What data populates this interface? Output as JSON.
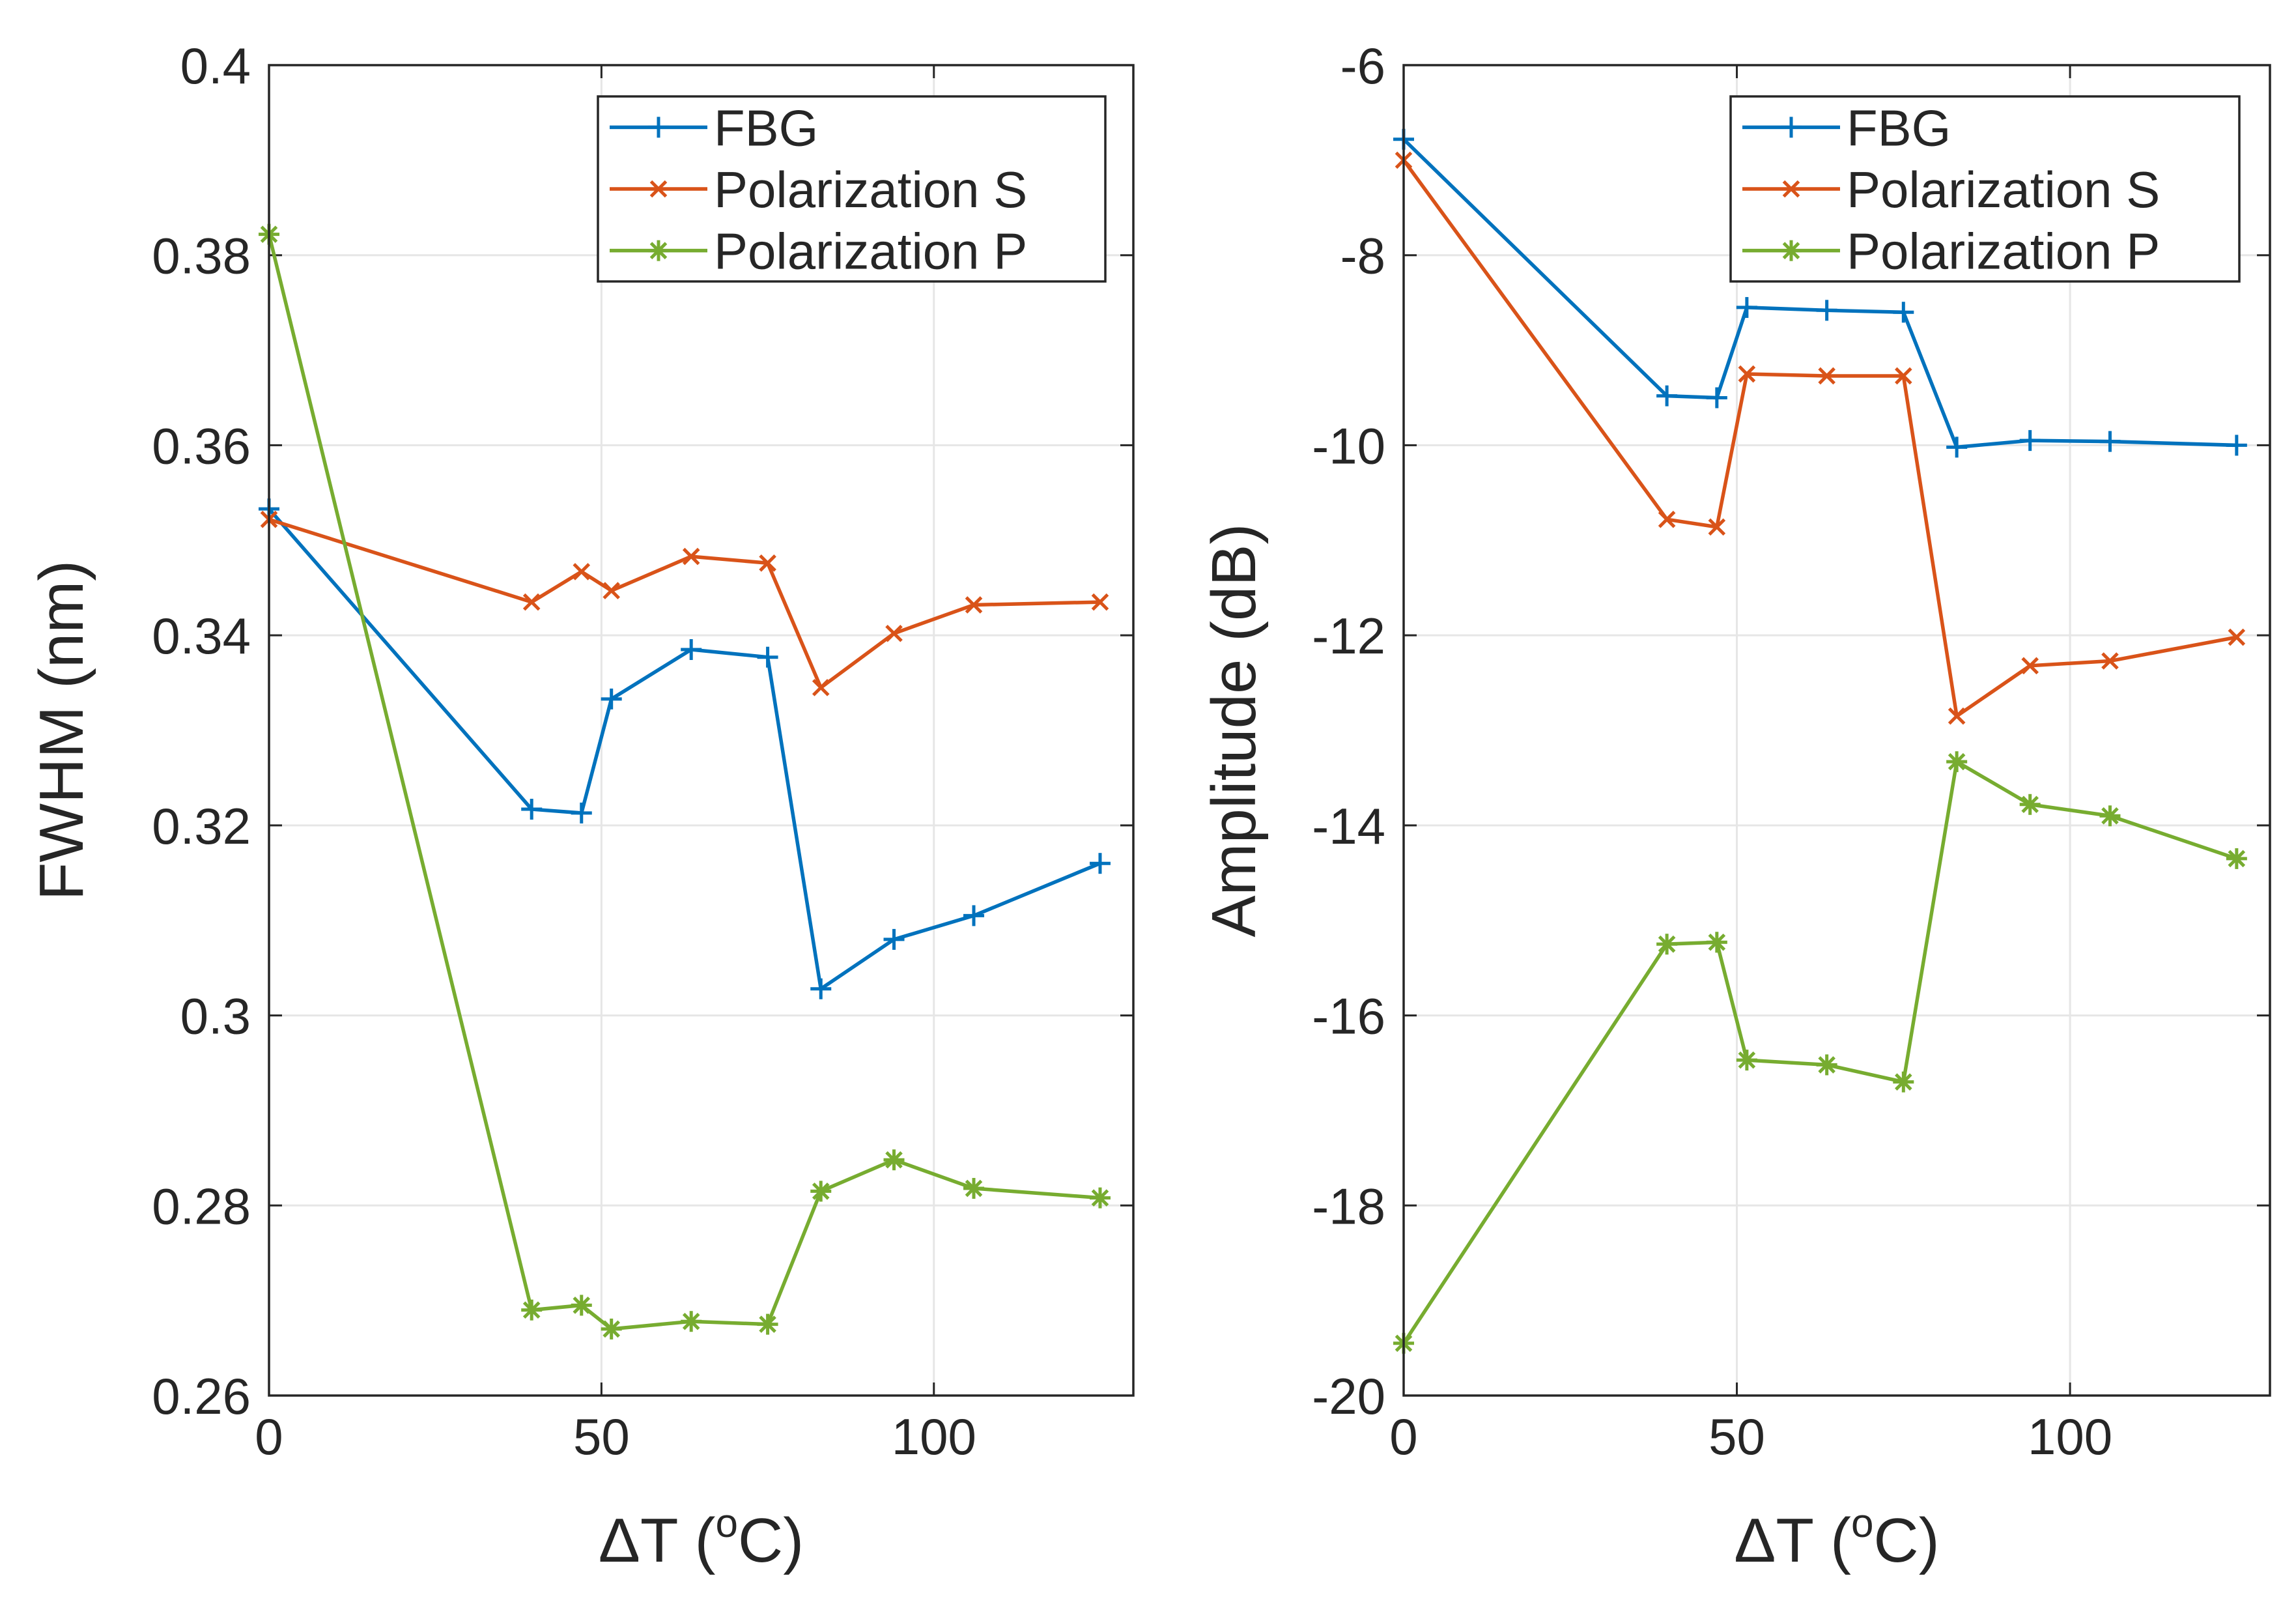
{
  "chart_data": [
    {
      "type": "line",
      "xlabel": "ΔT (",
      "xlabel_sup": "o",
      "xlabel_tail": "C)",
      "ylabel": "FWHM (nm)",
      "xlim": [
        0,
        130
      ],
      "ylim": [
        0.26,
        0.4
      ],
      "xticks": [
        0,
        50,
        100
      ],
      "xtick_labels": [
        "0",
        "50",
        "100"
      ],
      "yticks": [
        0.26,
        0.28,
        0.3,
        0.32,
        0.34,
        0.36,
        0.38,
        0.4
      ],
      "ytick_labels": [
        "0.26",
        "0.28",
        "0.3",
        "0.32",
        "0.34",
        "0.36",
        "0.38",
        "0.4"
      ],
      "grid": true,
      "legend_position": "top-right",
      "x": [
        0,
        39.5,
        47,
        51.5,
        63.5,
        75,
        83,
        94,
        106,
        125
      ],
      "series": [
        {
          "name": "FBG",
          "marker": "plus",
          "color": "#0072BD",
          "values": [
            0.3533,
            0.3217,
            0.3213,
            0.3333,
            0.3385,
            0.3377,
            0.3028,
            0.308,
            0.3105,
            0.316
          ]
        },
        {
          "name": "Polarization S",
          "marker": "x",
          "color": "#D95319",
          "values": [
            0.3522,
            0.3435,
            0.3467,
            0.3447,
            0.3483,
            0.3476,
            0.3345,
            0.3402,
            0.3432,
            0.3435
          ]
        },
        {
          "name": "Polarization P",
          "marker": "star",
          "color": "#77AC30",
          "values": [
            0.3822,
            0.269,
            0.2695,
            0.267,
            0.2678,
            0.2675,
            0.2815,
            0.2848,
            0.2818,
            0.2808
          ]
        }
      ]
    },
    {
      "type": "line",
      "xlabel": "ΔT (",
      "xlabel_sup": "o",
      "xlabel_tail": "C)",
      "ylabel": "Amplitude (dB)",
      "xlim": [
        0,
        130
      ],
      "ylim": [
        -20,
        -6
      ],
      "xticks": [
        0,
        50,
        100
      ],
      "xtick_labels": [
        "0",
        "50",
        "100"
      ],
      "yticks": [
        -20,
        -18,
        -16,
        -14,
        -12,
        -10,
        -8,
        -6
      ],
      "ytick_labels": [
        "-20",
        "-18",
        "-16",
        "-14",
        "-12",
        "-10",
        "-8",
        "-6"
      ],
      "grid": true,
      "legend_position": "top-right",
      "x": [
        0,
        39.5,
        47,
        51.5,
        63.5,
        75,
        83,
        94,
        106,
        125
      ],
      "series": [
        {
          "name": "FBG",
          "marker": "plus",
          "color": "#0072BD",
          "values": [
            -6.78,
            -9.48,
            -9.5,
            -8.55,
            -8.58,
            -8.6,
            -10.02,
            -9.95,
            -9.96,
            -10.0
          ]
        },
        {
          "name": "Polarization S",
          "marker": "x",
          "color": "#D95319",
          "values": [
            -7.0,
            -10.78,
            -10.86,
            -9.25,
            -9.27,
            -9.27,
            -12.85,
            -12.32,
            -12.27,
            -12.02
          ]
        },
        {
          "name": "Polarization P",
          "marker": "star",
          "color": "#77AC30",
          "values": [
            -19.45,
            -15.25,
            -15.23,
            -16.47,
            -16.52,
            -16.7,
            -13.33,
            -13.78,
            -13.9,
            -14.35
          ]
        }
      ]
    }
  ]
}
